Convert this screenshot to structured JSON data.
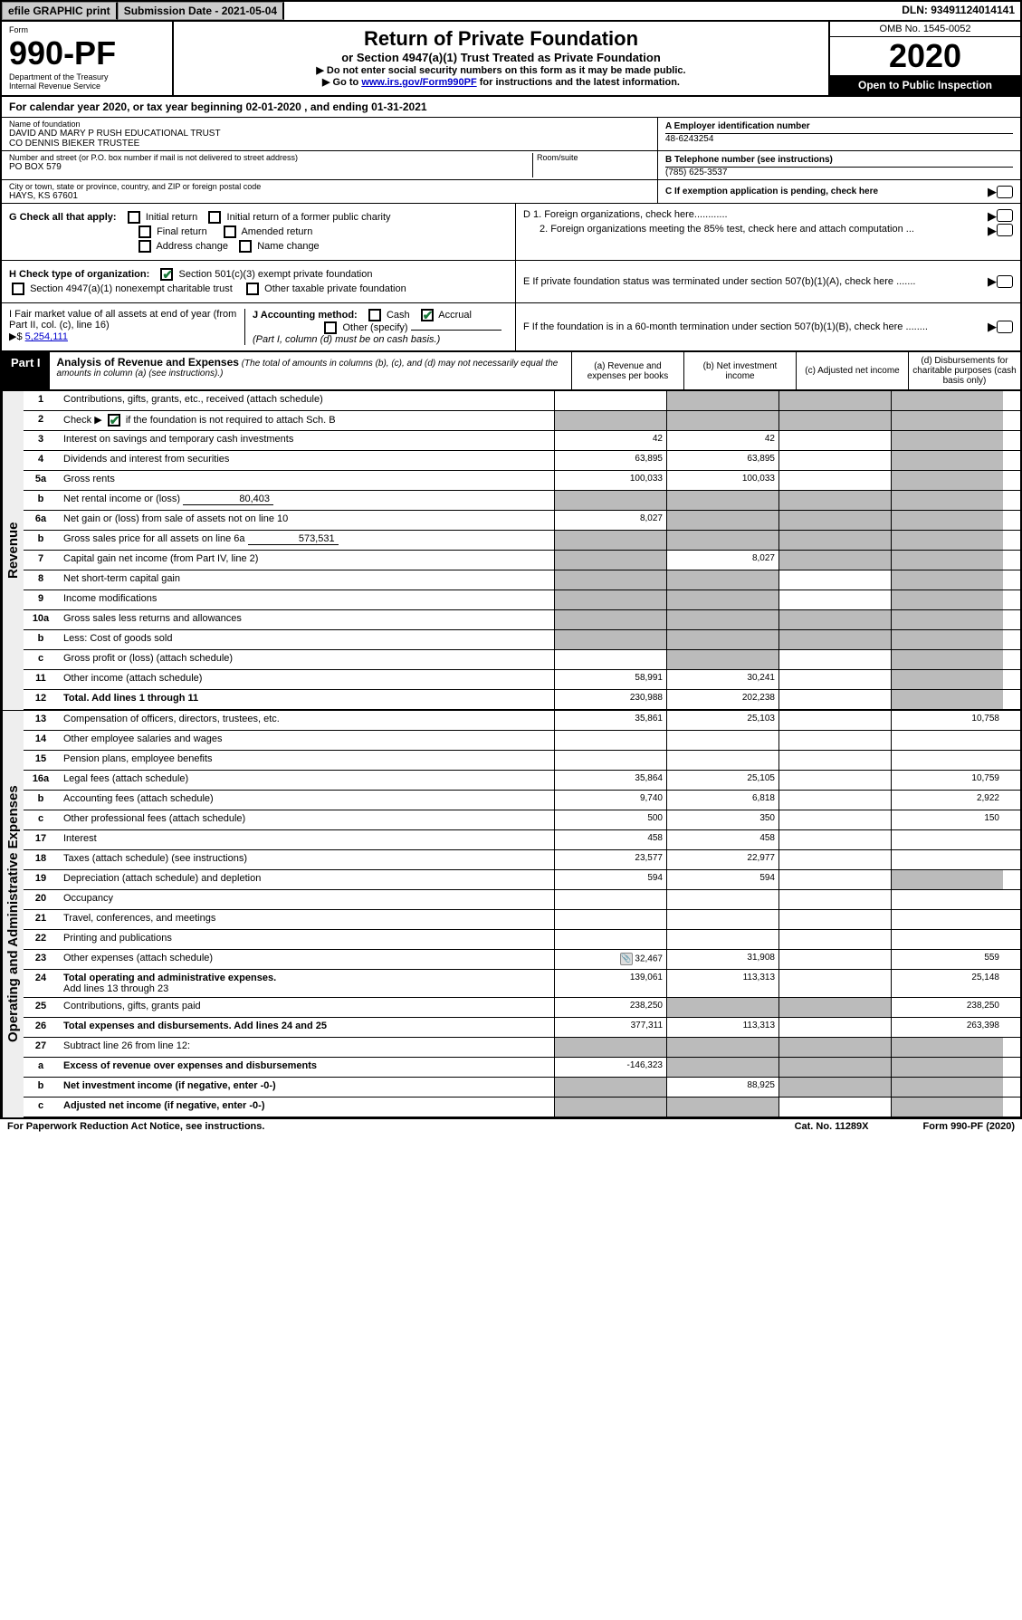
{
  "topbar": {
    "efile": "efile GRAPHIC print",
    "subdate_label": "Submission Date - 2021-05-04",
    "dln": "DLN: 93491124014141"
  },
  "header": {
    "form_word": "Form",
    "form_no": "990-PF",
    "dept": "Department of the Treasury",
    "irs": "Internal Revenue Service",
    "title": "Return of Private Foundation",
    "subtitle": "or Section 4947(a)(1) Trust Treated as Private Foundation",
    "note1": "▶ Do not enter social security numbers on this form as it may be made public.",
    "note2_pre": "▶ Go to ",
    "note2_link": "www.irs.gov/Form990PF",
    "note2_post": " for instructions and the latest information.",
    "omb": "OMB No. 1545-0052",
    "year": "2020",
    "inspect": "Open to Public Inspection"
  },
  "calyear": "For calendar year 2020, or tax year beginning 02-01-2020                            , and ending 01-31-2021",
  "info": {
    "name_label": "Name of foundation",
    "name": "DAVID AND MARY P RUSH EDUCATIONAL TRUST\nCO DENNIS BIEKER TRUSTEE",
    "addr_label": "Number and street (or P.O. box number if mail is not delivered to street address)",
    "room_label": "Room/suite",
    "addr": "PO BOX 579",
    "city_label": "City or town, state or province, country, and ZIP or foreign postal code",
    "city": "HAYS, KS  67601",
    "ein_label": "A Employer identification number",
    "ein": "48-6243254",
    "phone_label": "B Telephone number (see instructions)",
    "phone": "(785) 625-3537",
    "c_label": "C If exemption application is pending, check here",
    "d1": "D 1. Foreign organizations, check here............",
    "d2": "2. Foreign organizations meeting the 85% test, check here and attach computation ...",
    "e_label": "E  If private foundation status was terminated under section 507(b)(1)(A), check here .......",
    "f_label": "F  If the foundation is in a 60-month termination under section 507(b)(1)(B), check here ........"
  },
  "g": {
    "label": "G Check all that apply:",
    "opts": [
      "Initial return",
      "Initial return of a former public charity",
      "Final return",
      "Amended return",
      "Address change",
      "Name change"
    ]
  },
  "h": {
    "label": "H Check type of organization:",
    "opt1": "Section 501(c)(3) exempt private foundation",
    "opt2": "Section 4947(a)(1) nonexempt charitable trust",
    "opt3": "Other taxable private foundation"
  },
  "i": {
    "label": "I Fair market value of all assets at end of year (from Part II, col. (c), line 16)",
    "val_prefix": "▶$ ",
    "val": "5,254,111"
  },
  "j": {
    "label": "J Accounting method:",
    "cash": "Cash",
    "accrual": "Accrual",
    "other": "Other (specify)",
    "note": "(Part I, column (d) must be on cash basis.)"
  },
  "part1": {
    "label": "Part I",
    "title": "Analysis of Revenue and Expenses",
    "desc": "(The total of amounts in columns (b), (c), and (d) may not necessarily equal the amounts in column (a) (see instructions).)",
    "col_a": "(a)   Revenue and expenses per books",
    "col_b": "(b)  Net investment income",
    "col_c": "(c)  Adjusted net income",
    "col_d": "(d)  Disbursements for charitable purposes (cash basis only)"
  },
  "revenue_label": "Revenue",
  "expenses_label": "Operating and Administrative Expenses",
  "rows": {
    "r1": {
      "n": "1",
      "l": "Contributions, gifts, grants, etc., received (attach schedule)"
    },
    "r2": {
      "n": "2",
      "l": "Check ▶",
      "l2": "if the foundation is not required to attach Sch. B"
    },
    "r3": {
      "n": "3",
      "l": "Interest on savings and temporary cash investments",
      "a": "42",
      "b": "42"
    },
    "r4": {
      "n": "4",
      "l": "Dividends and interest from securities",
      "a": "63,895",
      "b": "63,895"
    },
    "r5a": {
      "n": "5a",
      "l": "Gross rents",
      "a": "100,033",
      "b": "100,033"
    },
    "r5b": {
      "n": "b",
      "l": "Net rental income or (loss)",
      "v": "80,403"
    },
    "r6a": {
      "n": "6a",
      "l": "Net gain or (loss) from sale of assets not on line 10",
      "a": "8,027"
    },
    "r6b": {
      "n": "b",
      "l": "Gross sales price for all assets on line 6a",
      "v": "573,531"
    },
    "r7": {
      "n": "7",
      "l": "Capital gain net income (from Part IV, line 2)",
      "b": "8,027"
    },
    "r8": {
      "n": "8",
      "l": "Net short-term capital gain"
    },
    "r9": {
      "n": "9",
      "l": "Income modifications"
    },
    "r10a": {
      "n": "10a",
      "l": "Gross sales less returns and allowances"
    },
    "r10b": {
      "n": "b",
      "l": "Less: Cost of goods sold"
    },
    "r10c": {
      "n": "c",
      "l": "Gross profit or (loss) (attach schedule)"
    },
    "r11": {
      "n": "11",
      "l": "Other income (attach schedule)",
      "a": "58,991",
      "b": "30,241"
    },
    "r12": {
      "n": "12",
      "l": "Total. Add lines 1 through 11",
      "a": "230,988",
      "b": "202,238"
    },
    "r13": {
      "n": "13",
      "l": "Compensation of officers, directors, trustees, etc.",
      "a": "35,861",
      "b": "25,103",
      "d": "10,758"
    },
    "r14": {
      "n": "14",
      "l": "Other employee salaries and wages"
    },
    "r15": {
      "n": "15",
      "l": "Pension plans, employee benefits"
    },
    "r16a": {
      "n": "16a",
      "l": "Legal fees (attach schedule)",
      "a": "35,864",
      "b": "25,105",
      "d": "10,759"
    },
    "r16b": {
      "n": "b",
      "l": "Accounting fees (attach schedule)",
      "a": "9,740",
      "b": "6,818",
      "d": "2,922"
    },
    "r16c": {
      "n": "c",
      "l": "Other professional fees (attach schedule)",
      "a": "500",
      "b": "350",
      "d": "150"
    },
    "r17": {
      "n": "17",
      "l": "Interest",
      "a": "458",
      "b": "458"
    },
    "r18": {
      "n": "18",
      "l": "Taxes (attach schedule) (see instructions)",
      "a": "23,577",
      "b": "22,977"
    },
    "r19": {
      "n": "19",
      "l": "Depreciation (attach schedule) and depletion",
      "a": "594",
      "b": "594"
    },
    "r20": {
      "n": "20",
      "l": "Occupancy"
    },
    "r21": {
      "n": "21",
      "l": "Travel, conferences, and meetings"
    },
    "r22": {
      "n": "22",
      "l": "Printing and publications"
    },
    "r23": {
      "n": "23",
      "l": "Other expenses (attach schedule)",
      "a": "32,467",
      "b": "31,908",
      "d": "559",
      "icon": true
    },
    "r24": {
      "n": "24",
      "l": "Total operating and administrative expenses.",
      "l2": "Add lines 13 through 23",
      "a": "139,061",
      "b": "113,313",
      "d": "25,148"
    },
    "r25": {
      "n": "25",
      "l": "Contributions, gifts, grants paid",
      "a": "238,250",
      "d": "238,250"
    },
    "r26": {
      "n": "26",
      "l": "Total expenses and disbursements. Add lines 24 and 25",
      "a": "377,311",
      "b": "113,313",
      "d": "263,398"
    },
    "r27": {
      "n": "27",
      "l": "Subtract line 26 from line 12:"
    },
    "r27a": {
      "n": "a",
      "l": "Excess of revenue over expenses and disbursements",
      "a": "-146,323"
    },
    "r27b": {
      "n": "b",
      "l": "Net investment income (if negative, enter -0-)",
      "b": "88,925"
    },
    "r27c": {
      "n": "c",
      "l": "Adjusted net income (if negative, enter -0-)"
    }
  },
  "footer": {
    "left": "For Paperwork Reduction Act Notice, see instructions.",
    "mid": "Cat. No. 11289X",
    "right": "Form 990-PF (2020)"
  }
}
